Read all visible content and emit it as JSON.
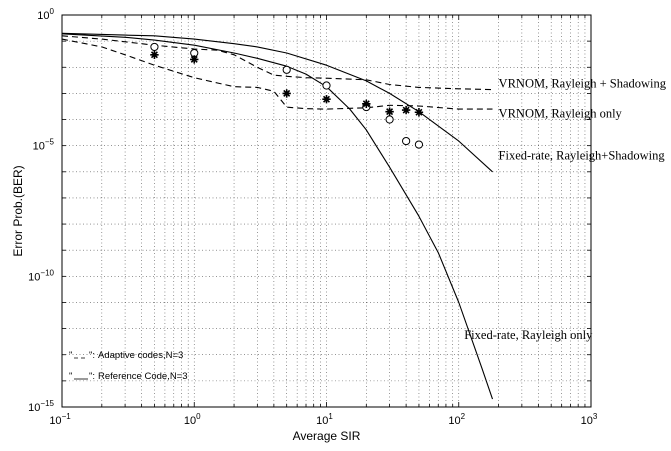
{
  "chart_data": {
    "type": "line",
    "xlabel": "Average SIR",
    "ylabel": "Error Prob.(BER)",
    "xscale": "log",
    "yscale": "log",
    "xlim": [
      0.1,
      1000
    ],
    "ylim": [
      1e-15,
      1
    ],
    "grid": true,
    "x_ticks": [
      {
        "value": 0.1,
        "base": "10",
        "exp": "−1"
      },
      {
        "value": 1,
        "base": "10",
        "exp": "0"
      },
      {
        "value": 10,
        "base": "10",
        "exp": "1"
      },
      {
        "value": 100,
        "base": "10",
        "exp": "2"
      },
      {
        "value": 1000,
        "base": "10",
        "exp": "3"
      }
    ],
    "y_ticks": [
      {
        "value": 1,
        "base": "10",
        "exp": "0"
      },
      {
        "value": 1e-05,
        "base": "10",
        "exp": "−5"
      },
      {
        "value": 1e-10,
        "base": "10",
        "exp": "−10"
      },
      {
        "value": 1e-15,
        "base": "10",
        "exp": "−15"
      }
    ],
    "series": [
      {
        "name": "Fixed-rate, Rayleigh only",
        "style": "solid",
        "points": [
          [
            0.1,
            0.19
          ],
          [
            0.3,
            0.14
          ],
          [
            0.5,
            0.11
          ],
          [
            1,
            0.07
          ],
          [
            2,
            0.035
          ],
          [
            3,
            0.022
          ],
          [
            5,
            0.011
          ],
          [
            7,
            0.0055
          ],
          [
            10,
            0.0018
          ],
          [
            15,
            0.00025
          ],
          [
            20,
            4e-05
          ],
          [
            30,
            1.5e-06
          ],
          [
            50,
            2e-08
          ],
          [
            70,
            8e-10
          ],
          [
            100,
            1e-11
          ],
          [
            150,
            3e-14
          ],
          [
            180,
            2e-15
          ]
        ]
      },
      {
        "name": "Fixed-rate, Rayleigh+Shadowing",
        "style": "solid",
        "points": [
          [
            0.1,
            0.2
          ],
          [
            0.3,
            0.17
          ],
          [
            0.5,
            0.16
          ],
          [
            1,
            0.12
          ],
          [
            2,
            0.08
          ],
          [
            3,
            0.06
          ],
          [
            5,
            0.035
          ],
          [
            10,
            0.012
          ],
          [
            20,
            0.003
          ],
          [
            30,
            0.001
          ],
          [
            50,
            0.0002
          ],
          [
            100,
            1.5e-05
          ],
          [
            180,
            1e-06
          ]
        ]
      },
      {
        "name": "VRNOM, Rayleigh + Shadowing",
        "style": "dashed",
        "points": [
          [
            0.1,
            0.16
          ],
          [
            0.2,
            0.12
          ],
          [
            0.5,
            0.07
          ],
          [
            1,
            0.05
          ],
          [
            1.5,
            0.045
          ],
          [
            2,
            0.03
          ],
          [
            3,
            0.01
          ],
          [
            4,
            0.005
          ],
          [
            5,
            0.0045
          ],
          [
            7,
            0.004
          ],
          [
            10,
            0.0038
          ],
          [
            20,
            0.0033
          ],
          [
            30,
            0.0022
          ],
          [
            50,
            0.0017
          ],
          [
            100,
            0.0015
          ],
          [
            180,
            0.0014
          ]
        ]
      },
      {
        "name": "VRNOM, Rayleigh only",
        "style": "dashed",
        "points": [
          [
            0.1,
            0.12
          ],
          [
            0.2,
            0.06
          ],
          [
            0.3,
            0.03
          ],
          [
            0.5,
            0.012
          ],
          [
            1,
            0.004
          ],
          [
            1.5,
            0.0025
          ],
          [
            2,
            0.0018
          ],
          [
            3,
            0.0017
          ],
          [
            4,
            0.0012
          ],
          [
            5,
            0.0003
          ],
          [
            7,
            0.00026
          ],
          [
            10,
            0.00025
          ],
          [
            20,
            0.00028
          ],
          [
            30,
            0.00035
          ],
          [
            50,
            0.00033
          ],
          [
            100,
            0.00025
          ],
          [
            180,
            0.00025
          ]
        ]
      }
    ],
    "markers": [
      {
        "symbol": "circle",
        "points": [
          [
            0.5,
            0.06
          ],
          [
            1,
            0.035
          ],
          [
            5,
            0.008
          ],
          [
            10,
            0.002
          ],
          [
            20,
            0.0003
          ],
          [
            30,
            0.0001
          ],
          [
            40,
            1.5e-05
          ],
          [
            50,
            1.1e-05
          ]
        ]
      },
      {
        "symbol": "star",
        "points": [
          [
            0.5,
            0.03
          ],
          [
            1,
            0.02
          ],
          [
            5,
            0.001
          ],
          [
            10,
            0.0006
          ],
          [
            20,
            0.0004
          ],
          [
            30,
            0.0002
          ],
          [
            40,
            0.00023
          ],
          [
            50,
            0.00019
          ]
        ]
      }
    ],
    "annotations": [
      {
        "text": "VRNOM, Rayleigh + Shadowing",
        "anchor": [
          200,
          0.0017
        ]
      },
      {
        "text": "VRNOM, Rayleigh only",
        "anchor": [
          200,
          0.00012
        ]
      },
      {
        "text": "Fixed-rate, Rayleigh+Shadowing",
        "anchor": [
          200,
          3e-06
        ]
      },
      {
        "text": "Fixed-rate, Rayleigh only",
        "anchor": [
          110,
          4e-13
        ]
      }
    ],
    "legend": {
      "placement": "bottom-left",
      "entries": [
        {
          "line": "dashed",
          "text": "Adaptive codes,N=3"
        },
        {
          "line": "solid",
          "text": "Reference Code,N=3"
        }
      ]
    }
  }
}
